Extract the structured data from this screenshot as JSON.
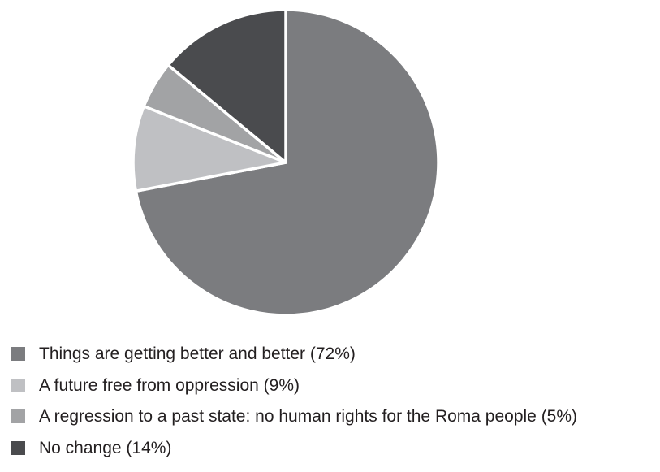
{
  "chart_data": {
    "type": "pie",
    "title": "",
    "slices": [
      {
        "label": "Things are getting better and better (72%)",
        "value": 72,
        "color": "#7b7c7f"
      },
      {
        "label": "A future free from oppression (9%)",
        "value": 9,
        "color": "#bfc0c3"
      },
      {
        "label": "A regression to a past state: no human rights for the Roma people  (5%)",
        "value": 5,
        "color": "#a2a3a5"
      },
      {
        "label": "No change (14%)",
        "value": 14,
        "color": "#4a4b4e"
      }
    ],
    "start_angle": "12 o'clock",
    "direction": "clockwise",
    "legend_position": "bottom-left"
  }
}
